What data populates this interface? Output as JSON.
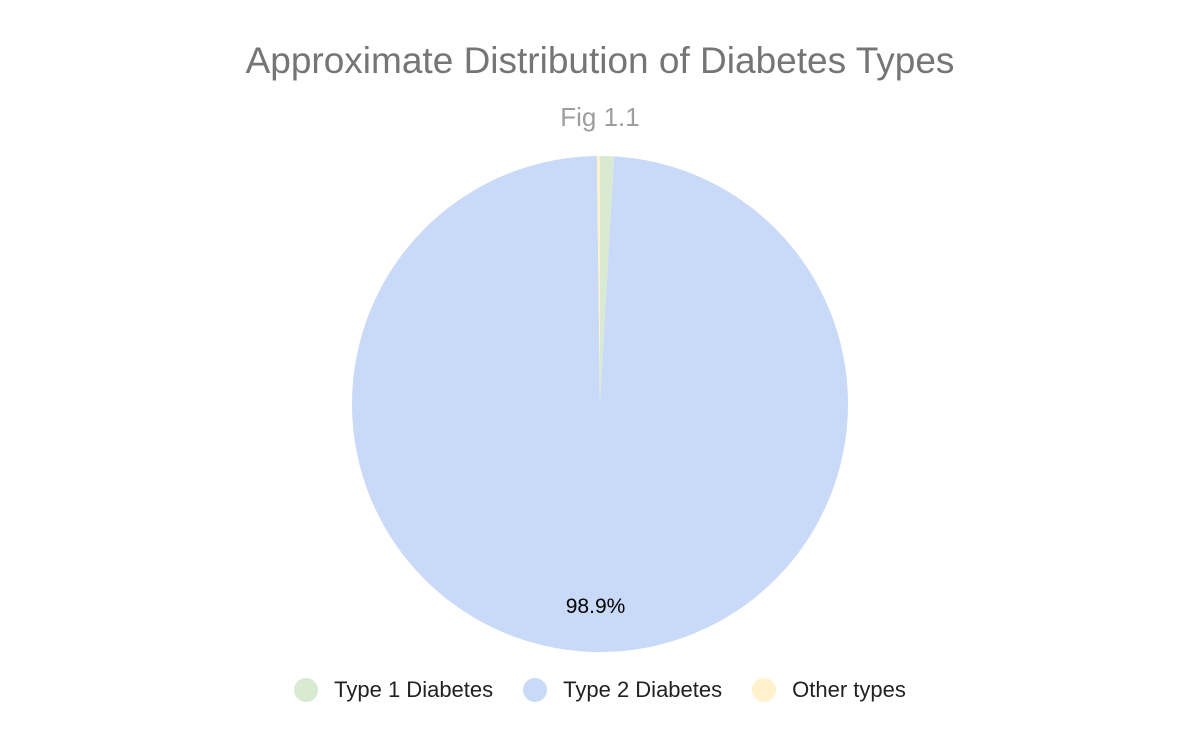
{
  "chart_data": {
    "type": "pie",
    "title": "Approximate Distribution of Diabetes Types",
    "subtitle": "Fig 1.1",
    "categories": [
      "Type 1 Diabetes",
      "Type 2 Diabetes",
      "Other types"
    ],
    "values": [
      0.9,
      98.9,
      0.2
    ],
    "colors": [
      "#d9ead3",
      "#c9daf8",
      "#fff2cc"
    ],
    "data_labels": [
      "",
      "98.9%",
      ""
    ],
    "legend_position": "bottom"
  }
}
